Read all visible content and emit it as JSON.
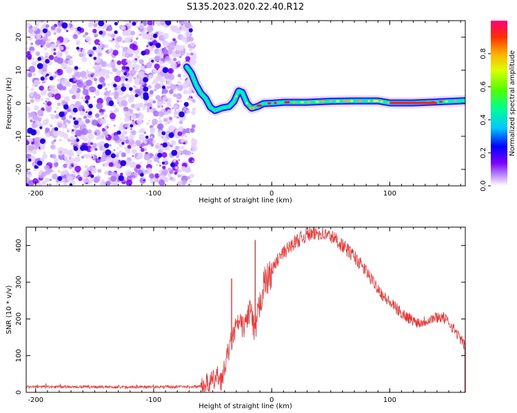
{
  "title": "S135.2023.020.22.40.R12",
  "chart_data": [
    {
      "type": "heatmap",
      "xlabel": "Height of straight line (km)",
      "ylabel": "Frequency (Hz)",
      "xlim": [
        -208,
        164
      ],
      "ylim": [
        -25,
        25
      ],
      "xticks": [
        -200,
        -100,
        0,
        100
      ],
      "yticks": [
        -20,
        -10,
        0,
        10,
        20
      ],
      "noise_region": {
        "x_range": [
          -208,
          -64
        ],
        "y_range": [
          -25,
          25
        ]
      },
      "tone_trace": [
        [
          -72,
          11
        ],
        [
          -68,
          9
        ],
        [
          -64,
          5.5
        ],
        [
          -60,
          3
        ],
        [
          -56,
          1.5
        ],
        [
          -52,
          -1.2
        ],
        [
          -48,
          -2.2
        ],
        [
          -42,
          -1.4
        ],
        [
          -36,
          -1
        ],
        [
          -32,
          0.5
        ],
        [
          -28,
          3.7
        ],
        [
          -25,
          3.3
        ],
        [
          -21,
          0
        ],
        [
          -17,
          -1.5
        ],
        [
          -12,
          -1
        ],
        [
          -7,
          -0.1
        ],
        [
          0,
          0
        ],
        [
          10,
          0.3
        ],
        [
          30,
          0.3
        ],
        [
          50,
          0.6
        ],
        [
          70,
          0.7
        ],
        [
          90,
          0.7
        ],
        [
          100,
          0.1
        ],
        [
          120,
          0.1
        ],
        [
          140,
          0.4
        ],
        [
          164,
          0.8
        ]
      ],
      "colorbar": {
        "label": "Normalized spectral amplitude",
        "ticks": [
          0.0,
          0.2,
          0.4,
          0.6,
          0.8
        ],
        "range": [
          0,
          1
        ]
      }
    },
    {
      "type": "line",
      "xlabel": "Height of straight line (km)",
      "ylabel": "SNR (10 * v/v)",
      "xlim": [
        -208,
        164
      ],
      "ylim": [
        0,
        450
      ],
      "xticks": [
        -200,
        -100,
        0,
        100
      ],
      "yticks": [
        0,
        100,
        200,
        300,
        400
      ],
      "color": "#ee3333",
      "series": [
        {
          "x": [
            -208,
            -190,
            -170,
            -150,
            -130,
            -110,
            -90,
            -70,
            -60,
            -50,
            -45,
            -42,
            -39,
            -36,
            -33,
            -30,
            -27,
            -24,
            -21,
            -18,
            -15,
            -12,
            -9,
            -6,
            -3,
            0,
            5,
            10,
            15,
            20,
            25,
            30,
            35,
            40,
            45,
            50,
            55,
            60,
            65,
            70,
            75,
            80,
            85,
            90,
            95,
            100,
            105,
            110,
            115,
            120,
            125,
            130,
            135,
            140,
            145,
            150,
            155,
            160,
            164
          ],
          "y": [
            15,
            15,
            15,
            15,
            14,
            15,
            15,
            15,
            16,
            30,
            45,
            30,
            80,
            120,
            150,
            180,
            190,
            175,
            200,
            230,
            160,
            200,
            260,
            300,
            310,
            330,
            360,
            380,
            395,
            410,
            420,
            430,
            430,
            435,
            430,
            425,
            415,
            400,
            385,
            370,
            350,
            330,
            305,
            285,
            260,
            245,
            230,
            215,
            205,
            195,
            190,
            195,
            200,
            205,
            205,
            190,
            170,
            145,
            125
          ]
        }
      ],
      "spikes": [
        [
          -34,
          310
        ],
        [
          -14,
          415
        ]
      ]
    }
  ]
}
